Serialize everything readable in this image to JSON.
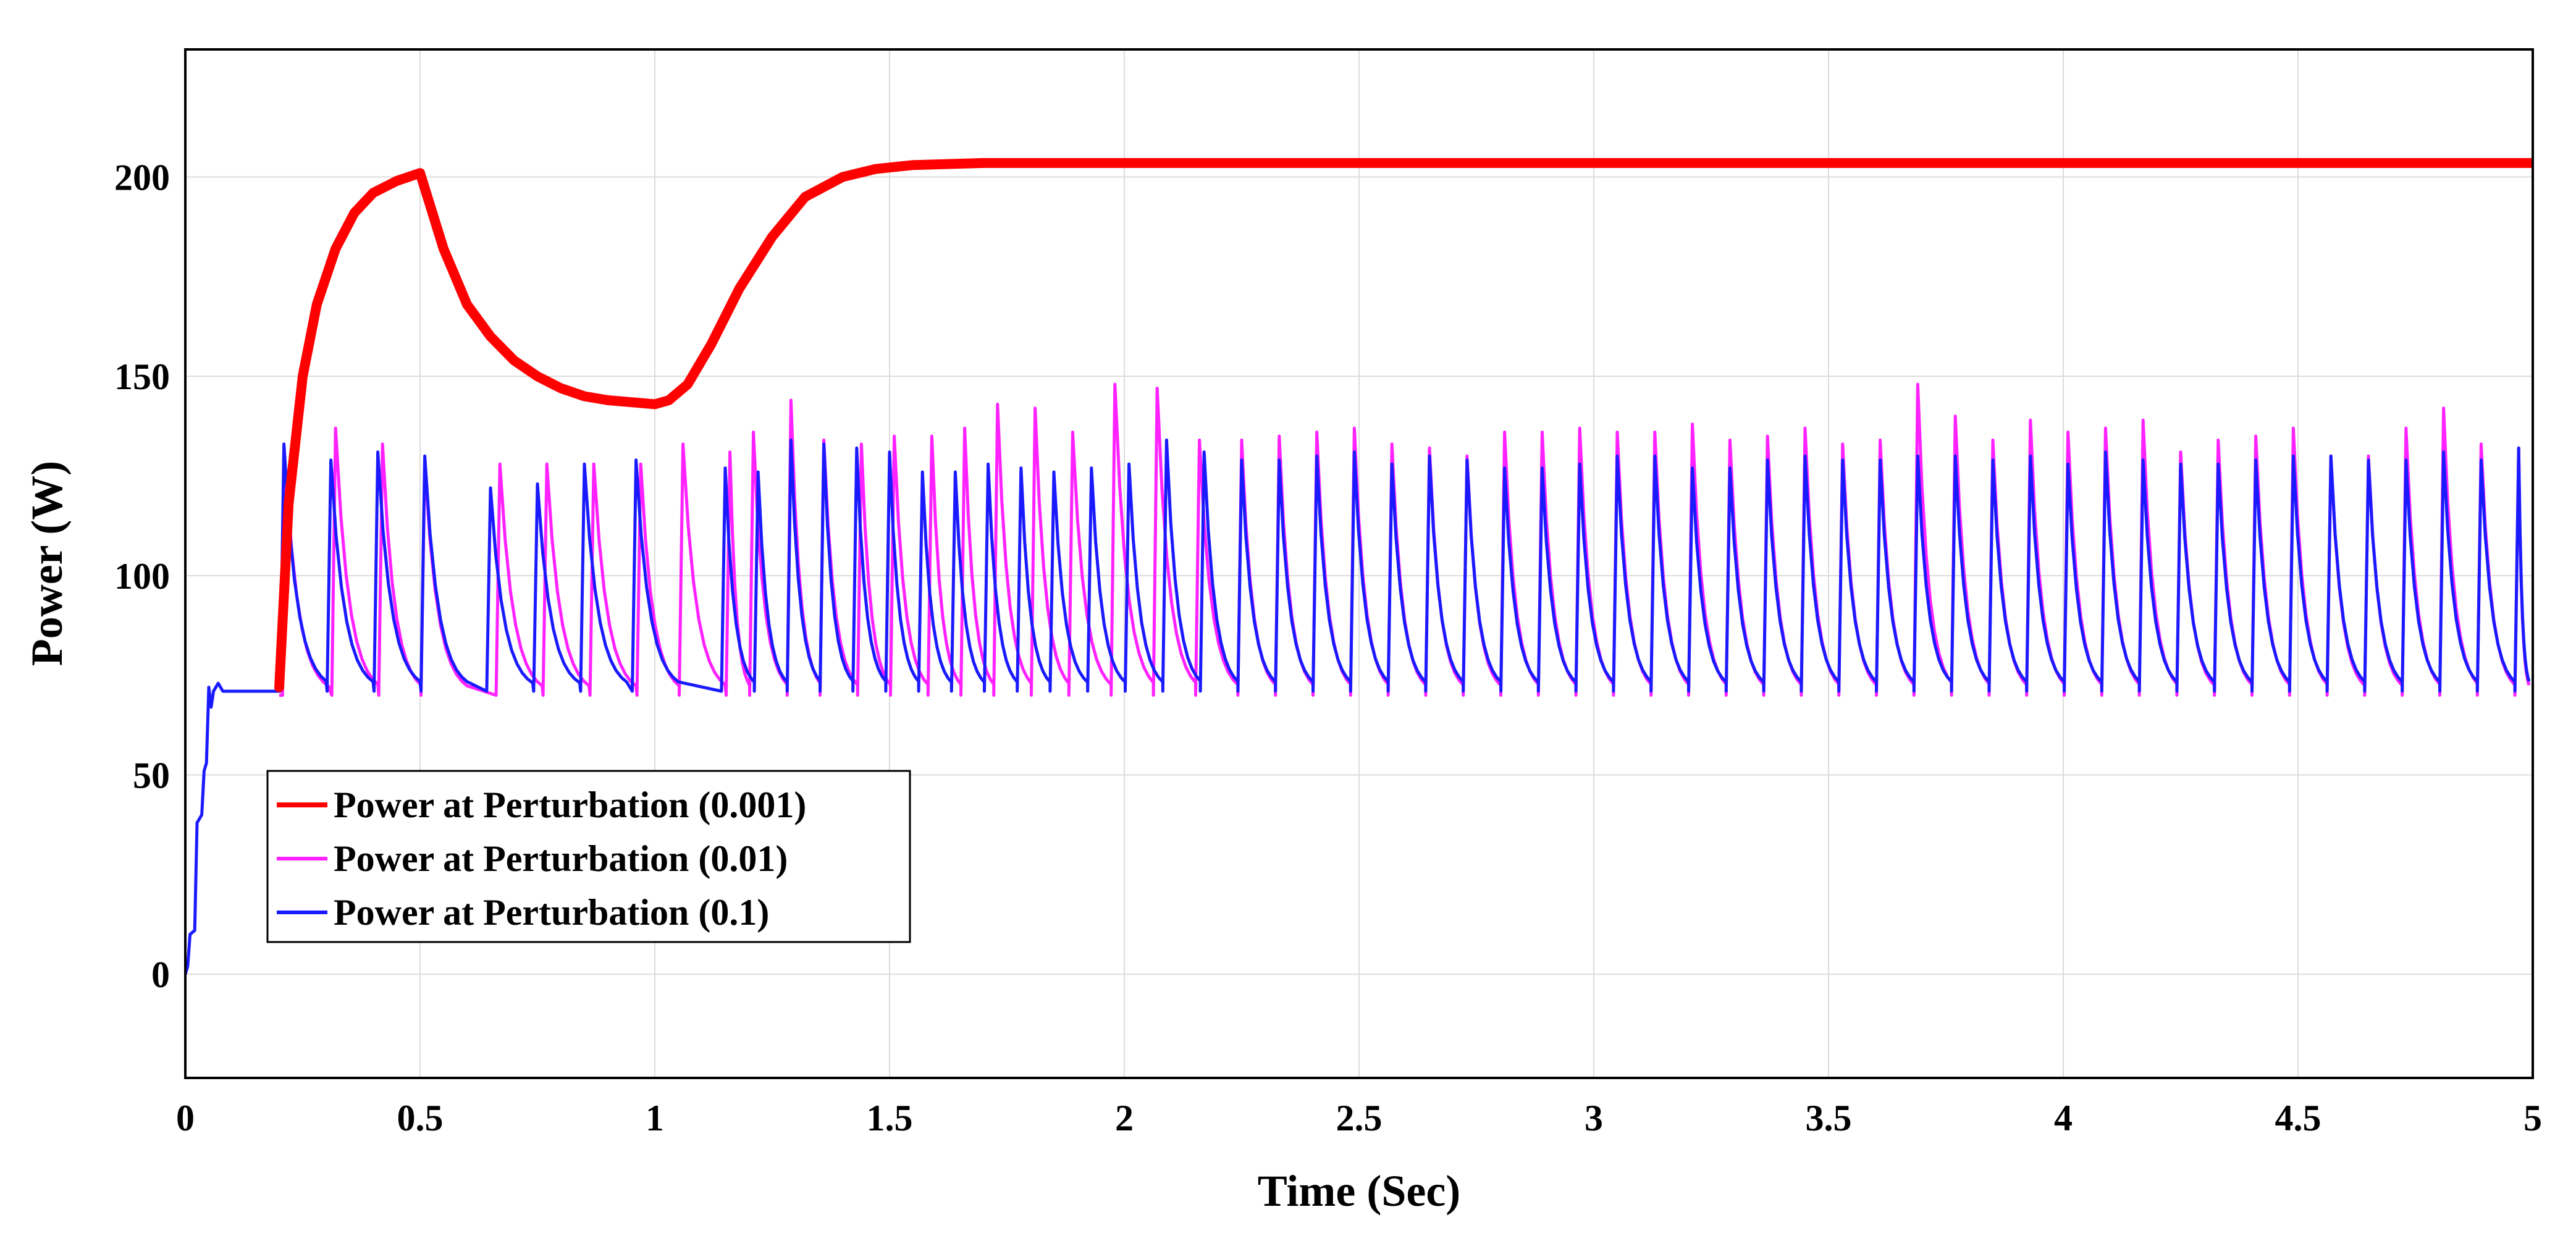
{
  "chart_data": {
    "type": "line",
    "xlabel": "Time (Sec)",
    "ylabel": "Power (W)",
    "xlim": [
      0,
      5
    ],
    "ylim": [
      -26,
      232
    ],
    "xticks": [
      0,
      0.5,
      1,
      1.5,
      2,
      2.5,
      3,
      3.5,
      4,
      4.5,
      5
    ],
    "xtick_labels": [
      "0",
      "0.5",
      "1",
      "1.5",
      "2",
      "2.5",
      "3",
      "3.5",
      "4",
      "4.5",
      "5"
    ],
    "yticks": [
      0,
      50,
      100,
      150,
      200
    ],
    "ytick_labels": [
      "0",
      "50",
      "100",
      "150",
      "200"
    ],
    "grid": true,
    "legend_position": "lower-left",
    "series": [
      {
        "name": "Power at Perturbation (0.001)",
        "color": "#ff0000",
        "style": "thick-band",
        "x": [
          0.2,
          0.22,
          0.25,
          0.28,
          0.32,
          0.36,
          0.4,
          0.45,
          0.5,
          0.55,
          0.6,
          0.65,
          0.7,
          0.75,
          0.8,
          0.85,
          0.9,
          0.95,
          1.0,
          1.03,
          1.07,
          1.12,
          1.18,
          1.25,
          1.32,
          1.4,
          1.47,
          1.55,
          1.7,
          2.0,
          3.0,
          4.0,
          5.0
        ],
        "y": [
          72,
          118,
          150,
          168,
          182,
          191,
          196,
          199,
          201,
          182,
          168,
          160,
          154,
          150,
          147,
          145,
          144,
          143.5,
          143,
          144,
          148,
          158,
          172,
          185,
          195,
          200,
          202,
          203,
          203.5,
          203.5,
          203.5,
          203.5,
          203.5
        ]
      },
      {
        "name": "Power at Perturbation (0.01)",
        "color": "#ff22ff",
        "style": "sawtooth",
        "x_start": 0.2,
        "peak_times": [
          0.215,
          0.32,
          0.42,
          0.51,
          0.67,
          0.77,
          0.87,
          0.97,
          1.06,
          1.16,
          1.21,
          1.29,
          1.36,
          1.44,
          1.51,
          1.59,
          1.66,
          1.73,
          1.81,
          1.89,
          1.98,
          2.07,
          2.16,
          2.25,
          2.33,
          2.41,
          2.49,
          2.57,
          2.65,
          2.73,
          2.81,
          2.89,
          2.97,
          3.05,
          3.13,
          3.21,
          3.29,
          3.37,
          3.45,
          3.53,
          3.61,
          3.69,
          3.77,
          3.85,
          3.93,
          4.01,
          4.09,
          4.17,
          4.25,
          4.33,
          4.41,
          4.49,
          4.57,
          4.65,
          4.73,
          4.81,
          4.89,
          4.97
        ],
        "peak_values": [
          125,
          137,
          133,
          128,
          128,
          128,
          128,
          128,
          133,
          131,
          136,
          144,
          134,
          133,
          135,
          135,
          137,
          143,
          142,
          136,
          148,
          147,
          134,
          134,
          135,
          136,
          137,
          133,
          132,
          130,
          136,
          136,
          137,
          136,
          136,
          138,
          134,
          135,
          137,
          133,
          134,
          148,
          140,
          134,
          139,
          136,
          137,
          139,
          131,
          134,
          135,
          137,
          130,
          130,
          137,
          142,
          133,
          132
        ],
        "base_value": 70
      },
      {
        "name": "Power at Perturbation (0.1)",
        "color": "#1a1aff",
        "style": "sawtooth",
        "startup_x": [
          0,
          0.005,
          0.01,
          0.02,
          0.025,
          0.035,
          0.04,
          0.045,
          0.05,
          0.055,
          0.06,
          0.07,
          0.08,
          0.1,
          0.15,
          0.2
        ],
        "startup_y": [
          0,
          2,
          10,
          11,
          38,
          40,
          51,
          53,
          72,
          67,
          71,
          73,
          71,
          71,
          71,
          71
        ],
        "peak_times": [
          0.21,
          0.31,
          0.41,
          0.51,
          0.65,
          0.75,
          0.85,
          0.96,
          1.15,
          1.22,
          1.29,
          1.36,
          1.43,
          1.5,
          1.57,
          1.64,
          1.71,
          1.78,
          1.85,
          1.93,
          2.01,
          2.09,
          2.17,
          2.25,
          2.33,
          2.41,
          2.49,
          2.57,
          2.65,
          2.73,
          2.81,
          2.89,
          2.97,
          3.05,
          3.13,
          3.21,
          3.29,
          3.37,
          3.45,
          3.53,
          3.61,
          3.69,
          3.77,
          3.85,
          3.93,
          4.01,
          4.09,
          4.17,
          4.25,
          4.33,
          4.41,
          4.49,
          4.57,
          4.65,
          4.73,
          4.81,
          4.89,
          4.97
        ],
        "peak_values": [
          133,
          129,
          131,
          130,
          122,
          123,
          128,
          129,
          127,
          126,
          134,
          133,
          132,
          131,
          126,
          126,
          128,
          127,
          126,
          127,
          128,
          134,
          131,
          129,
          129,
          130,
          131,
          128,
          130,
          129,
          127,
          127,
          128,
          130,
          130,
          127,
          127,
          129,
          130,
          129,
          129,
          130,
          130,
          129,
          130,
          128,
          131,
          129,
          128,
          128,
          129,
          130,
          130,
          129,
          129,
          131,
          129,
          132
        ],
        "base_value": 71
      }
    ]
  }
}
